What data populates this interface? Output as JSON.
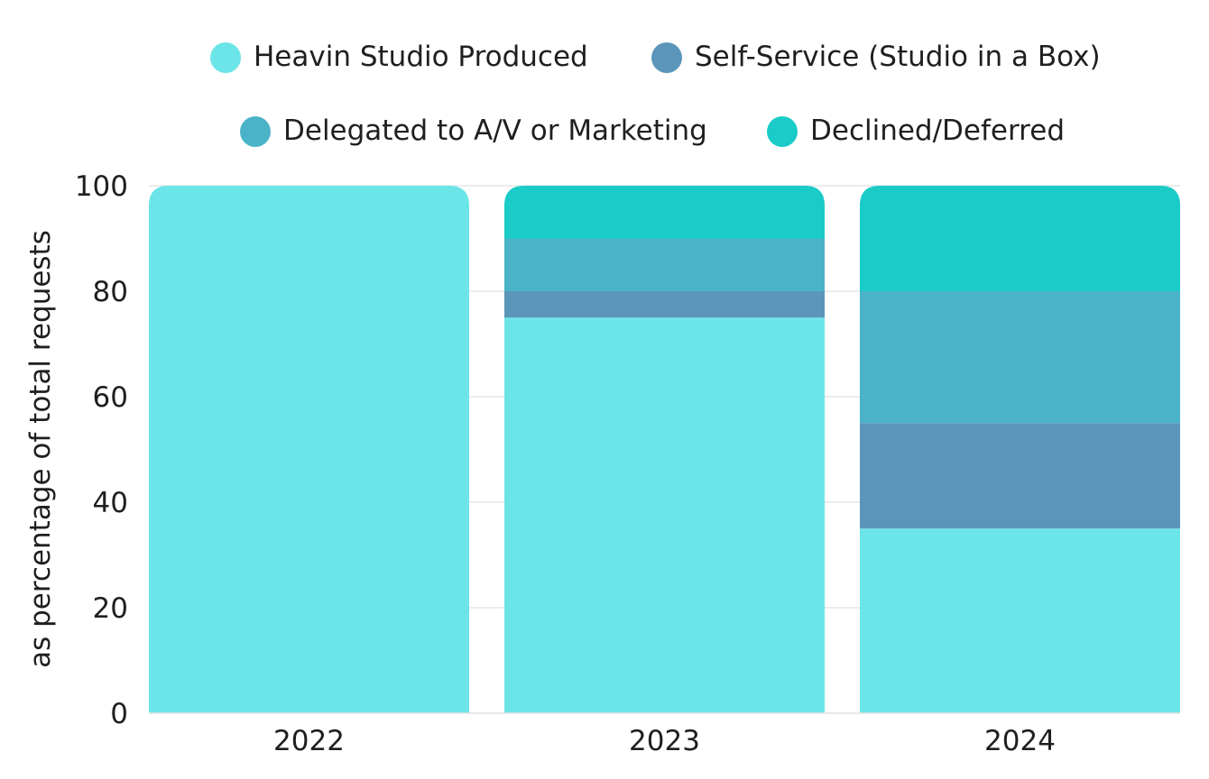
{
  "chart_data": {
    "type": "bar",
    "stacked": true,
    "title": "",
    "xlabel": "",
    "ylabel": "as percentage of total requests",
    "ylim": [
      0,
      100
    ],
    "yticks": [
      0,
      20,
      40,
      60,
      80,
      100
    ],
    "grid": true,
    "legend_position": "top",
    "categories": [
      "2022",
      "2023",
      "2024"
    ],
    "series": [
      {
        "name": "Heavin Studio Produced",
        "color": "#6CE5E8",
        "values": [
          100,
          75,
          35
        ]
      },
      {
        "name": "Self-Service (Studio in a Box)",
        "color": "#5B96BA",
        "values": [
          0,
          5,
          20
        ]
      },
      {
        "name": "Delegated to A/V or Marketing",
        "color": "#4BB3C8",
        "values": [
          0,
          10,
          25
        ]
      },
      {
        "name": "Declined/Deferred",
        "color": "#1ACBC8",
        "values": [
          0,
          10,
          20
        ]
      }
    ]
  }
}
